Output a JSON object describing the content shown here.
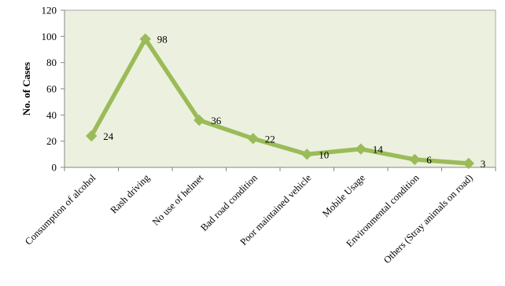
{
  "chart_data": {
    "type": "line",
    "title": "",
    "xlabel": "",
    "ylabel": "No. of Cases",
    "categories": [
      "Consumption of alcohol",
      "Rash driving",
      "No use of helmet",
      "Bad road condition",
      "Poor maintained vehicle",
      "Mobile Usage",
      "Environmental condition",
      "Others (Stray animals on road)"
    ],
    "series": [
      {
        "values": [
          24,
          98,
          36,
          22,
          10,
          14,
          6,
          3
        ]
      }
    ],
    "ylim": [
      0,
      120
    ],
    "yticks": [
      0,
      20,
      40,
      60,
      80,
      100,
      120
    ],
    "grid": false,
    "legend": "none",
    "data_labels": true,
    "colors": {
      "line": "#9bbb59",
      "plot_background": "#ebf1de",
      "plot_border": "#a6a6a6"
    }
  }
}
